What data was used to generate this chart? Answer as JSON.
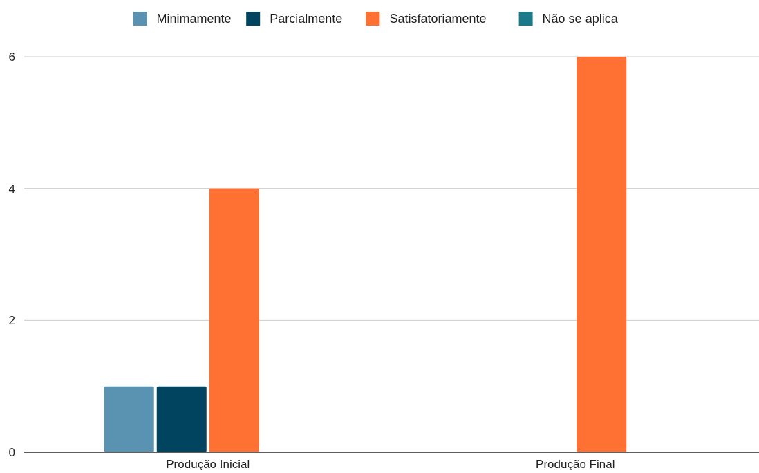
{
  "chart_data": {
    "type": "bar",
    "categories": [
      "Produção Inicial",
      "Produção Final"
    ],
    "series": [
      {
        "name": "Minimamente",
        "color": "#5a93b1",
        "values": [
          1,
          0
        ]
      },
      {
        "name": "Parcialmente",
        "color": "#00445f",
        "values": [
          1,
          0
        ]
      },
      {
        "name": "Satisfatoriamente",
        "color": "#ff7033",
        "values": [
          4,
          6
        ]
      },
      {
        "name": "Não se aplica",
        "color": "#1b7a8a",
        "values": [
          0,
          0
        ]
      }
    ],
    "ylim": [
      0,
      6
    ],
    "yticks": [
      0,
      2,
      4,
      6
    ],
    "grid": "y",
    "legend": "top"
  }
}
